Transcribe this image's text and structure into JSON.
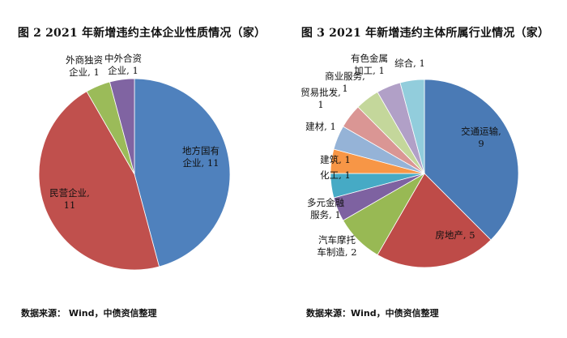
{
  "charts": {
    "left": {
      "title": "图 2 2021 年新增违约主体企业性质情况（家）",
      "source": "数据来源： Wind，中债资信整理"
    },
    "right": {
      "title": "图 3 2021 年新增违约主体所属行业情况（家）",
      "source": "数据来源：Wind，中债资信整理"
    }
  },
  "chart_data": [
    {
      "type": "pie",
      "title": "图 2 2021 年新增违约主体企业性质情况（家）",
      "slices": [
        {
          "label": "地方国有企业",
          "value": 11,
          "color": "#4f81bd",
          "text": [
            "地方国有",
            "企业, 11"
          ]
        },
        {
          "label": "民营企业",
          "value": 11,
          "color": "#c0504d",
          "text": [
            "民营企业,",
            "11"
          ]
        },
        {
          "label": "外商独资企业",
          "value": 1,
          "color": "#9bbb59",
          "text": [
            "外商独资",
            "企业, 1"
          ]
        },
        {
          "label": "中外合资企业",
          "value": 1,
          "color": "#8064a2",
          "text": [
            "中外合资",
            "企业, 1"
          ]
        }
      ]
    },
    {
      "type": "pie",
      "title": "图 3 2021 年新增违约主体所属行业情况（家）",
      "slices": [
        {
          "label": "交通运输",
          "value": 9,
          "color": "#4a7ab5",
          "text": [
            "交通运输,",
            "9"
          ]
        },
        {
          "label": "房地产",
          "value": 5,
          "color": "#be4b48",
          "text": [
            "房地产, 5"
          ]
        },
        {
          "label": "汽车摩托车制造",
          "value": 2,
          "color": "#98b954",
          "text": [
            "汽车摩托",
            "车制造, 2"
          ]
        },
        {
          "label": "多元金融服务",
          "value": 1,
          "color": "#7e62a1",
          "text": [
            "多元金融",
            "服务, 1"
          ]
        },
        {
          "label": "化工",
          "value": 1,
          "color": "#46aac5",
          "text": [
            "化工, 1"
          ]
        },
        {
          "label": "建筑",
          "value": 1,
          "color": "#f79646",
          "text": [
            "建筑, 1"
          ]
        },
        {
          "label": "建材",
          "value": 1,
          "color": "#95b3d7",
          "text": [
            "建材, 1"
          ]
        },
        {
          "label": "贸易批发",
          "value": 1,
          "color": "#da9694",
          "text": [
            "贸易批发,",
            "1"
          ]
        },
        {
          "label": "商业服务",
          "value": 1,
          "color": "#c4d79b",
          "text": [
            "商业服务,",
            "1"
          ]
        },
        {
          "label": "有色金属加工",
          "value": 1,
          "color": "#b1a0c7",
          "text": [
            "有色金属",
            "加工, 1"
          ]
        },
        {
          "label": "综合",
          "value": 1,
          "color": "#92cddc",
          "text": [
            "综合, 1"
          ]
        }
      ]
    }
  ]
}
